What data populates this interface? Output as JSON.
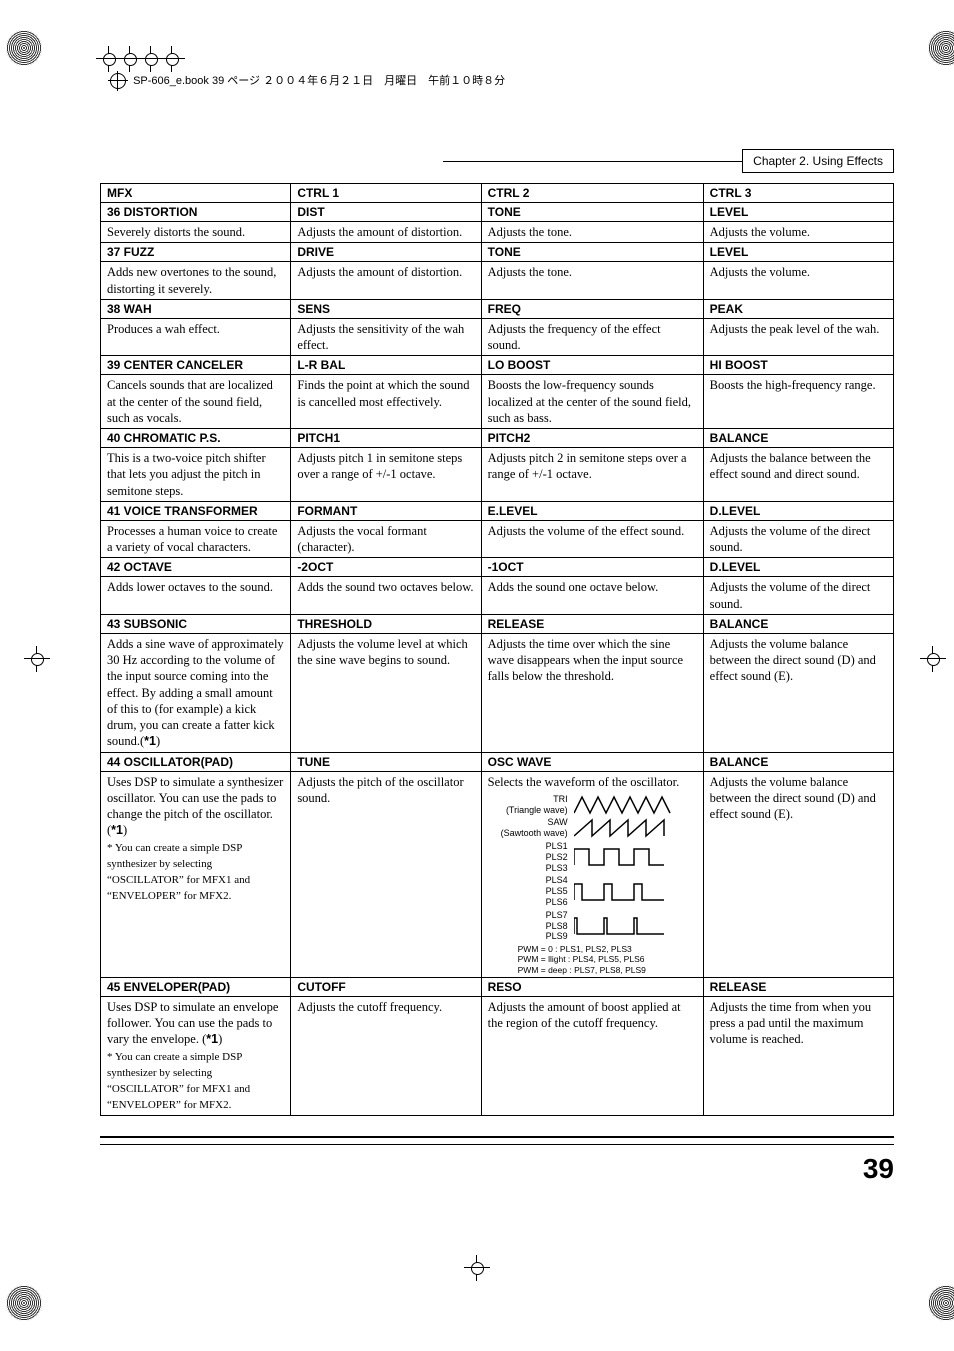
{
  "book_header": "SP-606_e.book  39 ページ  ２００４年６月２１日　月曜日　午前１０時８分",
  "chapter": "Chapter 2.  Using Effects",
  "page_number": "39",
  "table": {
    "headers": {
      "mfx": "MFX",
      "c1": "CTRL 1",
      "c2": "CTRL 2",
      "c3": "CTRL 3"
    },
    "rows": [
      {
        "h": {
          "mfx": "36 DISTORTION",
          "c1": "DIST",
          "c2": "TONE",
          "c3": "LEVEL"
        },
        "d": {
          "mfx": "Severely distorts the sound.",
          "c1": "Adjusts the amount of distortion.",
          "c2": "Adjusts the tone.",
          "c3": "Adjusts the volume."
        }
      },
      {
        "h": {
          "mfx": "37 FUZZ",
          "c1": "DRIVE",
          "c2": "TONE",
          "c3": "LEVEL"
        },
        "d": {
          "mfx": "Adds new overtones to the sound, distorting it severely.",
          "c1": "Adjusts the amount of distortion.",
          "c2": "Adjusts the tone.",
          "c3": "Adjusts the volume."
        }
      },
      {
        "h": {
          "mfx": "38 WAH",
          "c1": "SENS",
          "c2": "FREQ",
          "c3": "PEAK"
        },
        "d": {
          "mfx": "Produces a wah effect.",
          "c1": "Adjusts the sensitivity of the wah effect.",
          "c2": "Adjusts the frequency of the effect sound.",
          "c3": "Adjusts the peak level of the wah."
        }
      },
      {
        "h": {
          "mfx": "39 CENTER CANCELER",
          "c1": "L-R BAL",
          "c2": "LO BOOST",
          "c3": "HI BOOST"
        },
        "d": {
          "mfx": "Cancels sounds that are localized at the center of the sound field, such as vocals.",
          "c1": "Finds the point at which the sound is cancelled most effectively.",
          "c2": "Boosts the low-frequency sounds localized at the center of the sound field, such as bass.",
          "c3": "Boosts the high-frequency range."
        }
      },
      {
        "h": {
          "mfx": "40 CHROMATIC P.S.",
          "c1": "PITCH1",
          "c2": "PITCH2",
          "c3": "BALANCE"
        },
        "d": {
          "mfx": "This is a two-voice pitch shifter that lets you adjust the pitch in semitone steps.",
          "c1": "Adjusts pitch 1 in semitone steps over a range of +/-1 octave.",
          "c2": "Adjusts pitch 2 in semitone steps over a range of +/-1 octave.",
          "c3": "Adjusts the balance between the effect sound and direct sound."
        }
      },
      {
        "h": {
          "mfx": "41 VOICE TRANSFORMER",
          "c1": "FORMANT",
          "c2": "E.LEVEL",
          "c3": "D.LEVEL"
        },
        "d": {
          "mfx": "Processes a human voice to create a variety of vocal characters.",
          "c1": "Adjusts the vocal formant (character).",
          "c2": "Adjusts the volume of the effect sound.",
          "c3": "Adjusts the volume of the direct sound."
        }
      },
      {
        "h": {
          "mfx": "42 OCTAVE",
          "c1": "-2OCT",
          "c2": "-1OCT",
          "c3": "D.LEVEL"
        },
        "d": {
          "mfx": "Adds lower octaves to the sound.",
          "c1": "Adds the sound two octaves below.",
          "c2": "Adds the sound one octave below.",
          "c3": "Adjusts the volume of the direct sound."
        }
      },
      {
        "h": {
          "mfx": "43 SUBSONIC",
          "c1": "THRESHOLD",
          "c2": "RELEASE",
          "c3": "BALANCE"
        },
        "d": {
          "mfx_html": "Adds a sine wave of approximately 30 Hz according to the volume of the input source coming into the effect. By adding a small amount of this to (for example) a kick drum, you can create a fatter kick sound.(<span class='star1'>*1</span>)",
          "c1": "Adjusts the volume level at which the sine wave begins to sound.",
          "c2": "Adjusts the time over which the sine wave disappears when the input source falls below the threshold.",
          "c3": "Adjusts the volume balance between the direct sound (D) and effect sound (E)."
        }
      },
      {
        "h": {
          "mfx": "44 OSCILLATOR(PAD)",
          "c1": "TUNE",
          "c2": "OSC WAVE",
          "c3": "BALANCE"
        },
        "d": {
          "mfx_html": "Uses DSP to simulate a synthesizer oscillator. You can use the pads to change the pitch of the oscillator. (<span class='star1'>*1</span>)<br><span class='note'>* You can create a simple DSP synthesizer by selecting “OSCILLATOR” for MFX1 and “ENVELOPER” for MFX2.</span>",
          "c1": "Adjusts the pitch of the oscillator sound.",
          "c2_special": "osc_wave",
          "c3": "Adjusts the volume balance between the direct sound (D) and effect sound (E)."
        }
      },
      {
        "h": {
          "mfx": "45 ENVELOPER(PAD)",
          "c1": "CUTOFF",
          "c2": "RESO",
          "c3": "RELEASE"
        },
        "d": {
          "mfx_html": "Uses DSP to simulate an envelope follower. You can use the pads to vary the envelope. (<span class='star1'>*1</span>)<br><span class='note'>* You can create a simple DSP synthesizer by selecting “OSCILLATOR” for MFX1 and “ENVELOPER” for MFX2.</span>",
          "c1": "Adjusts the cutoff frequency.",
          "c2": "Adjusts the amount of boost applied at the region of the cutoff frequency.",
          "c3": "Adjusts the time from when you press a pad until the maximum volume is reached."
        }
      }
    ]
  },
  "osc_wave": {
    "intro": "Selects the waveform of the oscillator.",
    "labels": {
      "tri1": "TRI",
      "tri2": "(Triangle wave)",
      "saw1": "SAW",
      "saw2": "(Sawtooth wave)",
      "pls1": "PLS1",
      "pls2": "PLS2",
      "pls3": "PLS3",
      "pls4": "PLS4",
      "pls5": "PLS5",
      "pls6": "PLS6",
      "pls7": "PLS7",
      "pls8": "PLS8",
      "pls9": "PLS9"
    },
    "pwm_lines": [
      "PWM = 0       : PLS1, PLS2, PLS3",
      "PWM = llight  : PLS4, PLS5, PLS6",
      "PWM = deep  : PLS7, PLS8, PLS9"
    ]
  }
}
